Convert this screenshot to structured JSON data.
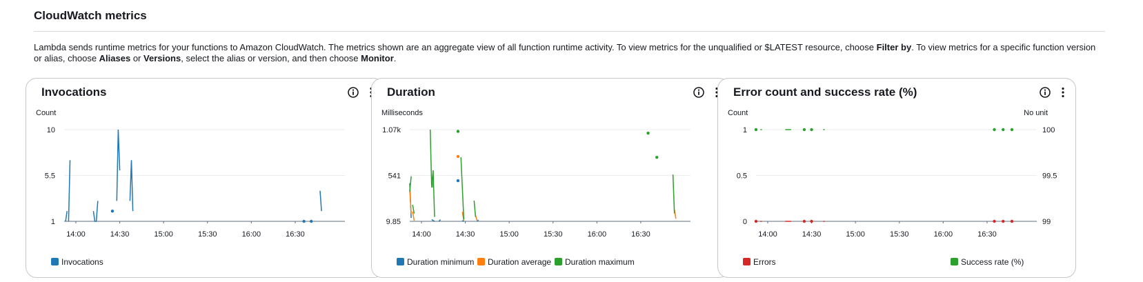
{
  "header": {
    "title": "CloudWatch metrics",
    "description": {
      "t1": "Lambda sends runtime metrics for your functions to Amazon CloudWatch. The metrics shown are an aggregate view of all function runtime activity. To view metrics for the unqualified or $LATEST resource, choose ",
      "b1": "Filter by",
      "t2": ". To view metrics for a specific function version or alias, choose ",
      "b2": "Aliases",
      "t3": " or ",
      "b3": "Versions",
      "t4": ", select the alias or version, and then choose ",
      "b4": "Monitor",
      "t5": "."
    }
  },
  "colors": {
    "blue": "#1f77b4",
    "orange": "#ff7f0e",
    "green": "#2ca02c",
    "red": "#d62728",
    "gridline": "#e9ebed",
    "axis": "#5f6b7a"
  },
  "icons": [
    "info-icon",
    "more-vertical-icon"
  ],
  "widgets": [
    {
      "title": "Invocations",
      "legend": [
        {
          "label": "Invocations",
          "color": "#1f77b4"
        }
      ]
    },
    {
      "title": "Duration",
      "legend": [
        {
          "label": "Duration minimum",
          "color": "#1f77b4"
        },
        {
          "label": "Duration average",
          "color": "#ff7f0e"
        },
        {
          "label": "Duration maximum",
          "color": "#2ca02c"
        }
      ]
    },
    {
      "title": "Error count and success rate (%)",
      "legend": [
        {
          "label": "Errors",
          "color": "#d62728"
        },
        {
          "label": "Success rate (%)",
          "color": "#2ca02c"
        }
      ]
    }
  ],
  "chart_data": [
    {
      "type": "line",
      "title": "Invocations",
      "ylabel": "Count",
      "xlim": [
        "13:52",
        "17:04"
      ],
      "ylim": [
        1,
        10
      ],
      "yticks": [
        1,
        5.5,
        10
      ],
      "ytick_labels": [
        "1",
        "5.5",
        "10"
      ],
      "xticks": [
        "14:00",
        "14:30",
        "15:00",
        "15:30",
        "16:00",
        "16:30"
      ],
      "grid": true,
      "series": [
        {
          "name": "Invocations",
          "color": "#1f77b4",
          "segments": [
            [
              [
                "13:53",
                1
              ],
              [
                "13:54",
                2
              ]
            ],
            [
              [
                "13:55",
                1
              ],
              [
                "13:56",
                7
              ]
            ],
            [
              [
                "14:12",
                2
              ],
              [
                "14:13",
                1
              ],
              [
                "14:14",
                1
              ],
              [
                "14:15",
                3
              ]
            ],
            [
              [
                "14:25",
                2
              ]
            ],
            [
              [
                "14:28",
                3
              ],
              [
                "14:29",
                10
              ],
              [
                "14:30",
                6
              ]
            ],
            [
              [
                "14:37",
                3
              ],
              [
                "14:38",
                7
              ],
              [
                "14:39",
                2
              ]
            ],
            [
              [
                "16:36",
                1
              ]
            ],
            [
              [
                "16:41",
                1
              ]
            ],
            [
              [
                "16:47",
                4
              ],
              [
                "16:48",
                2
              ]
            ]
          ]
        }
      ]
    },
    {
      "type": "line",
      "title": "Duration",
      "ylabel": "Milliseconds",
      "xlim": [
        "13:52",
        "17:04"
      ],
      "ylim": [
        9.85,
        1070
      ],
      "yticks": [
        9.85,
        541,
        1070
      ],
      "ytick_labels": [
        "9.85",
        "541",
        "1.07k"
      ],
      "xticks": [
        "14:00",
        "14:30",
        "15:00",
        "15:30",
        "16:00",
        "16:30"
      ],
      "grid": true,
      "series": [
        {
          "name": "Duration minimum",
          "color": "#1f77b4",
          "segments": [
            [
              [
                "13:52",
                450
              ],
              [
                "13:53",
                50
              ]
            ],
            [
              [
                "14:07",
                30
              ],
              [
                "14:09",
                10
              ]
            ],
            [
              [
                "14:12",
                10
              ],
              [
                "14:13",
                30
              ]
            ],
            [
              [
                "14:25",
                480
              ]
            ],
            [
              [
                "14:28",
                20
              ],
              [
                "14:29",
                10
              ]
            ],
            [
              [
                "14:38",
                10
              ],
              [
                "14:39",
                25
              ]
            ]
          ]
        },
        {
          "name": "Duration average",
          "color": "#ff7f0e",
          "segments": [
            [
              [
                "13:52",
                380
              ],
              [
                "13:53",
                100
              ]
            ],
            [
              [
                "13:54",
                120
              ],
              [
                "13:55",
                20
              ]
            ],
            [
              [
                "14:07",
                520
              ],
              [
                "14:08",
                400
              ]
            ],
            [
              [
                "14:25",
                760
              ]
            ],
            [
              [
                "14:28",
                120
              ],
              [
                "14:29",
                20
              ]
            ],
            [
              [
                "14:37",
                80
              ],
              [
                "14:38",
                20
              ]
            ],
            [
              [
                "16:53",
                150
              ],
              [
                "16:54",
                40
              ]
            ]
          ]
        },
        {
          "name": "Duration maximum",
          "color": "#2ca02c",
          "segments": [
            [
              [
                "13:52",
                350
              ],
              [
                "13:53",
                530
              ]
            ],
            [
              [
                "13:54",
                200
              ],
              [
                "13:55",
                100
              ]
            ],
            [
              [
                "14:06",
                1070
              ],
              [
                "14:07",
                400
              ],
              [
                "14:08",
                600
              ],
              [
                "14:09",
                60
              ]
            ],
            [
              [
                "14:25",
                1050
              ]
            ],
            [
              [
                "14:27",
                750
              ],
              [
                "14:29",
                30
              ]
            ],
            [
              [
                "14:36",
                250
              ],
              [
                "14:37",
                60
              ]
            ],
            [
              [
                "16:35",
                1030
              ]
            ],
            [
              [
                "16:41",
                750
              ]
            ],
            [
              [
                "16:52",
                550
              ],
              [
                "16:53",
                100
              ]
            ]
          ]
        }
      ]
    },
    {
      "type": "line",
      "title": "Error count and success rate (%)",
      "ylabel": "Count",
      "y2label": "No unit",
      "xlim": [
        "13:52",
        "17:04"
      ],
      "ylim": [
        0,
        1
      ],
      "y2lim": [
        99,
        100
      ],
      "yticks": [
        0,
        0.5,
        1
      ],
      "ytick_labels": [
        "0",
        "0.5",
        "1"
      ],
      "y2ticks": [
        99,
        99.5,
        100
      ],
      "y2tick_labels": [
        "99",
        "99.5",
        "100"
      ],
      "xticks": [
        "14:00",
        "14:30",
        "15:00",
        "15:30",
        "16:00",
        "16:30"
      ],
      "grid": true,
      "series": [
        {
          "name": "Errors",
          "axis": "left",
          "color": "#d62728",
          "segments": [
            [
              [
                "13:52",
                0
              ]
            ],
            [
              [
                "13:55",
                0
              ],
              [
                "13:56",
                0
              ]
            ],
            [
              [
                "14:12",
                0
              ],
              [
                "14:16",
                0
              ]
            ],
            [
              [
                "14:25",
                0
              ]
            ],
            [
              [
                "14:30",
                0
              ]
            ],
            [
              [
                "14:38",
                0
              ],
              [
                "14:39",
                0
              ]
            ],
            [
              [
                "16:35",
                0
              ]
            ],
            [
              [
                "16:41",
                0
              ]
            ],
            [
              [
                "16:47",
                0
              ]
            ]
          ]
        },
        {
          "name": "Success rate (%)",
          "axis": "right",
          "color": "#2ca02c",
          "segments": [
            [
              [
                "13:52",
                100
              ]
            ],
            [
              [
                "13:55",
                100
              ],
              [
                "13:56",
                100
              ]
            ],
            [
              [
                "14:12",
                100
              ],
              [
                "14:16",
                100
              ]
            ],
            [
              [
                "14:25",
                100
              ]
            ],
            [
              [
                "14:30",
                100
              ]
            ],
            [
              [
                "14:38",
                100
              ],
              [
                "14:39",
                100
              ]
            ],
            [
              [
                "16:35",
                100
              ]
            ],
            [
              [
                "16:41",
                100
              ]
            ],
            [
              [
                "16:47",
                100
              ]
            ]
          ]
        }
      ]
    }
  ]
}
